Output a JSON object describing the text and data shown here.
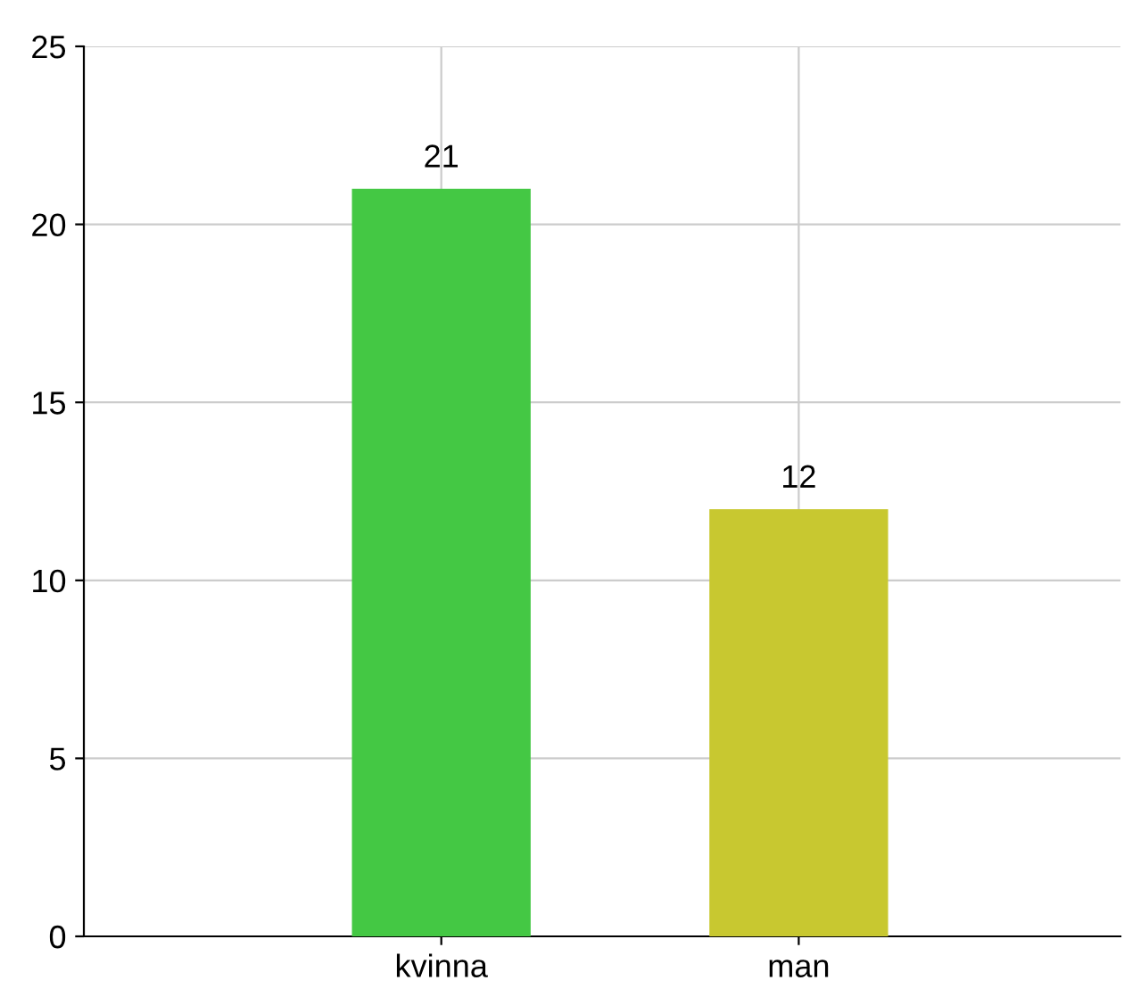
{
  "chart_data": {
    "type": "bar",
    "categories": [
      "kvinna",
      "man"
    ],
    "values": [
      21,
      12
    ],
    "colors": [
      "#44c844",
      "#c8c830"
    ],
    "ylim": [
      0,
      25
    ],
    "yticks": [
      0,
      5,
      10,
      15,
      20,
      25
    ],
    "grid": true,
    "data_labels": true
  }
}
